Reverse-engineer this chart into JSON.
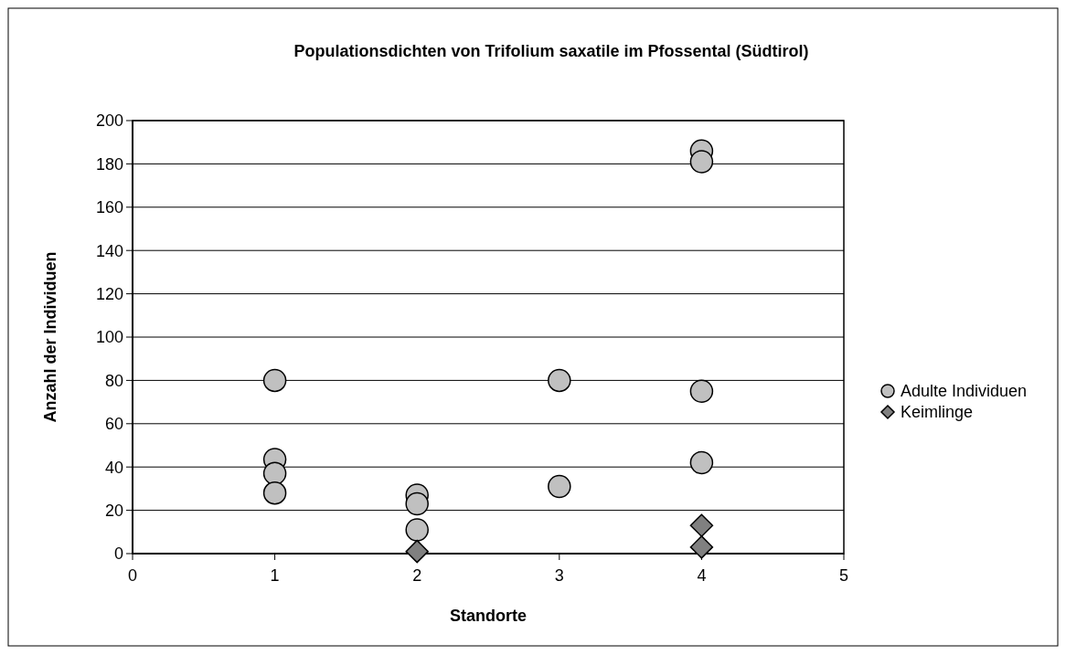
{
  "chart_data": {
    "type": "scatter",
    "title": "Populationsdichten von Trifolium saxatile im Pfossental (Südtirol)",
    "xlabel": "Standorte",
    "ylabel": "Anzahl der Individuen",
    "xlim": [
      0,
      5
    ],
    "xticks": [
      0,
      1,
      2,
      3,
      4,
      5
    ],
    "ylim": [
      0,
      200
    ],
    "yticks": [
      0,
      20,
      40,
      60,
      80,
      100,
      120,
      140,
      160,
      180,
      200
    ],
    "grid": "y",
    "legend": "right",
    "series": [
      {
        "name": "Adulte Individuen",
        "color": "#c0c0c0",
        "marker": "circle",
        "x": [
          1,
          1,
          1,
          1,
          2,
          2,
          2,
          3,
          3,
          4,
          4,
          4,
          4
        ],
        "values": [
          80,
          43.5,
          37,
          28,
          27,
          23,
          11,
          80,
          31,
          186,
          181,
          75,
          42
        ]
      },
      {
        "name": "Keimlinge",
        "color": "#808080",
        "marker": "diamond",
        "x": [
          2,
          4,
          4
        ],
        "values": [
          1,
          13,
          3
        ]
      }
    ]
  }
}
